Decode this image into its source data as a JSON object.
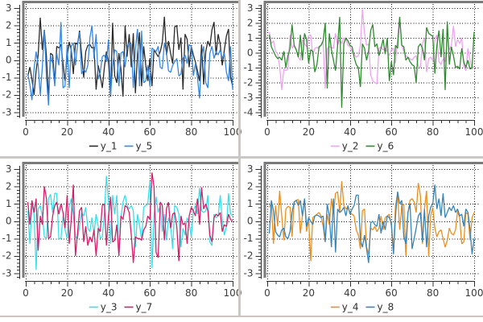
{
  "panel": {
    "background": "#ffffff",
    "separator_color": "#cbc7c5",
    "bottom_edge_color": "#ccc5c2",
    "frame_color": "#7a7a7a",
    "axis_color": "#2f2f2f",
    "grid_color": "#111111",
    "tick_label_color": "#3b3b3b",
    "legend_text_color": "#2e2e2e"
  },
  "chart_data": [
    {
      "type": "line",
      "position": "top-left",
      "xlim": [
        0,
        100
      ],
      "ylim": [
        -3,
        3
      ],
      "xticks": [
        0,
        20,
        40,
        60,
        80,
        100
      ],
      "yticks": [
        3,
        2,
        1,
        0,
        -1,
        -2,
        -3
      ],
      "x_minor_step": 4,
      "y_minor_divisions": 5,
      "grid": true,
      "legend_position": "bottom-center",
      "series": [
        {
          "name": "y_1",
          "color": "#2b2b2b",
          "values": [
            -0.9,
            -0.4,
            -1.1,
            -2.0,
            -0.6,
            0.3,
            2.45,
            0.6,
            1.75,
            0.2,
            -2.2,
            0.4,
            0.3,
            -1.3,
            0.8,
            0.7,
            0.9,
            -0.2,
            -1.2,
            0.2,
            1.05,
            0.6,
            -0.8,
            1.0,
            0.9,
            1.7,
            0.3,
            -1.0,
            0.5,
            0.85,
            0.9,
            0.7,
            0.75,
            -1.7,
            -0.3,
            -0.9,
            -1.6,
            -0.4,
            0.5,
            -0.1,
            -2.1,
            2.15,
            -0.9,
            -1.3,
            0.4,
            -0.5,
            -2.1,
            2.0,
            0.2,
            1.5,
            -0.4,
            1.55,
            -1.9,
            0.3,
            1.6,
            -1.5,
            0.8,
            -0.3,
            -1.2,
            0.1,
            -1.5,
            0.6,
            0.4,
            0.2,
            0.5,
            1.0,
            2.5,
            0.3,
            1.1,
            0.4,
            -0.2,
            1.9,
            2.0,
            0.6,
            1.3,
            -1.7,
            1.5,
            1.2,
            -0.4,
            0.8,
            0.3,
            -0.1,
            -0.6,
            -1.2,
            0.9,
            -1.4,
            0.5,
            1.1,
            0.8,
            1.75,
            2.2,
            0.3,
            1.5,
            0.9,
            -0.3,
            0.6,
            1.4,
            1.8,
            -1.0,
            -1.5
          ]
        },
        {
          "name": "y_5",
          "color": "#3787e0",
          "values": [
            -0.8,
            -1.4,
            -2.3,
            -0.5,
            0.5,
            -0.3,
            -2.0,
            -0.4,
            1.75,
            -1.0,
            -2.6,
            0.3,
            -0.2,
            -1.5,
            0.4,
            -0.3,
            2.2,
            -1.6,
            -1.5,
            0.9,
            -1.6,
            0.8,
            1.0,
            -0.3,
            0.9,
            1.6,
            -0.8,
            -0.5,
            -0.7,
            -0.3,
            1.3,
            2.0,
            0.1,
            1.5,
            -1.1,
            -0.7,
            0.2,
            0.3,
            -0.1,
            1.2,
            -2.0,
            -0.4,
            0.6,
            0.5,
            -1.5,
            0.4,
            0.5,
            -0.4,
            0.8,
            1.0,
            0.9,
            -1.6,
            0.6,
            1.8,
            -1.5,
            1.7,
            -1.3,
            -1.2,
            -0.3,
            -1.5,
            0.7,
            0.6,
            0.5,
            0.8,
            -0.4,
            -0.5,
            1.0,
            0.4,
            -0.6,
            -0.7,
            -0.3,
            -0.1,
            0.1,
            -0.9,
            -0.8,
            0.1,
            0.3,
            -0.2,
            0.9,
            0.8,
            -0.9,
            -0.2,
            -1.0,
            -2.2,
            0.2,
            0.8,
            -1.3,
            -1.6,
            0.4,
            0.8,
            0.1,
            0.5,
            0.3,
            0.6,
            0.1,
            0.4,
            -0.7,
            -1.2,
            0.8,
            -1.7
          ]
        }
      ]
    },
    {
      "type": "line",
      "position": "top-right",
      "xlim": [
        0,
        100
      ],
      "ylim": [
        -4,
        3
      ],
      "xticks": [
        0,
        20,
        40,
        60,
        80,
        100
      ],
      "yticks": [
        3,
        2,
        1,
        0,
        -1,
        -2,
        -3,
        -4
      ],
      "x_minor_step": 4,
      "y_minor_divisions": 5,
      "grid": true,
      "legend_position": "bottom-center",
      "series": [
        {
          "name": "y_2",
          "color": "#efa3ef",
          "values": [
            1.4,
            0.6,
            0.8,
            0.1,
            -0.1,
            -0.9,
            -2.5,
            -1.1,
            -1.2,
            -1.1,
            1.2,
            0.3,
            0.5,
            0.2,
            -0.3,
            -0.5,
            0.9,
            0.6,
            0.4,
            1.15,
            1.2,
            -0.2,
            0.3,
            0.35,
            0.3,
            0.5,
            0.7,
            -2.4,
            0.3,
            0.4,
            0.35,
            0.3,
            1.3,
            0.5,
            0.9,
            0.6,
            1.0,
            0.9,
            0.5,
            0.4,
            0.1,
            -0.1,
            -0.3,
            -0.2,
            0.5,
            2.9,
            1.3,
            0.5,
            0.6,
            -1.5,
            -1.9,
            -2.0,
            -2.1,
            0.3,
            0.4,
            0.2,
            0.3,
            0.1,
            -0.2,
            0.2,
            0.3,
            -0.7,
            1.0,
            2.4,
            0.5,
            0.1,
            -0.2,
            -0.3,
            -0.4,
            -0.5,
            -0.3,
            -0.2,
            -0.9,
            -1.0,
            0.6,
            1.0,
            -1.3,
            -0.4,
            -0.3,
            -0.5,
            0.9,
            1.2,
            -0.6,
            -0.8,
            -0.4,
            -0.6,
            1.1,
            0.2,
            0.5,
            1.8,
            0.4,
            0.9,
            0.6,
            1.0,
            -0.9,
            -1.2,
            0.3,
            -0.5,
            -1.1,
            -0.9
          ]
        },
        {
          "name": "y_6",
          "color": "#2e8b2e",
          "values": [
            1.2,
            0.4,
            0.1,
            -0.2,
            -0.4,
            -0.3,
            -0.5,
            0.1,
            -1.0,
            -0.2,
            0.3,
            1.9,
            0.5,
            0.2,
            -0.3,
            1.2,
            -0.5,
            1.3,
            0.9,
            -0.7,
            0.2,
            0.1,
            -1.3,
            -0.8,
            0.4,
            0.5,
            0.8,
            2.0,
            -2.4,
            1.3,
            0.2,
            -0.5,
            -1.2,
            0.5,
            2.4,
            -3.7,
            0.6,
            1.0,
            0.8,
            0.5,
            0.4,
            -0.3,
            -0.8,
            -1.0,
            -2.3,
            0.6,
            0.3,
            -0.5,
            0.1,
            1.5,
            1.9,
            0.4,
            0.6,
            -0.2,
            0.3,
            0.9,
            -0.1,
            1.0,
            -1.9,
            -0.6,
            -1.5,
            0.5,
            0.3,
            2.4,
            0.5,
            0.4,
            -0.5,
            -0.3,
            -0.6,
            -0.8,
            -0.9,
            -2.0,
            0.4,
            0.6,
            0.3,
            -0.5,
            1.7,
            1.3,
            1.2,
            1.1,
            -1.4,
            0.5,
            1.5,
            -0.3,
            1.6,
            -2.5,
            2.1,
            -0.8,
            0.4,
            -0.2,
            -1.0,
            -0.9,
            -1.1,
            0.3,
            -0.6,
            -1.0,
            -0.5,
            -1.1,
            -1.0,
            1.4
          ]
        }
      ]
    },
    {
      "type": "line",
      "position": "bottom-left",
      "xlim": [
        0,
        100
      ],
      "ylim": [
        -3,
        3
      ],
      "xticks": [
        0,
        20,
        40,
        60,
        80,
        100
      ],
      "yticks": [
        3,
        2,
        1,
        0,
        -1,
        -2,
        -3
      ],
      "x_minor_step": 4,
      "y_minor_divisions": 5,
      "grid": true,
      "legend_position": "bottom-center",
      "series": [
        {
          "name": "y_3",
          "color": "#3adee8",
          "values": [
            0.6,
            -1.3,
            1.0,
            0.4,
            -2.8,
            0.7,
            0.9,
            0.3,
            -0.9,
            -1.0,
            1.3,
            1.55,
            0.5,
            1.6,
            1.6,
            -1.0,
            -1.0,
            0.3,
            -0.5,
            -1.0,
            0.8,
            1.3,
            0.4,
            -0.9,
            -1.0,
            -0.3,
            0.5,
            0.3,
            0.8,
            -0.4,
            -0.6,
            0.2,
            -0.7,
            0.4,
            -0.3,
            -1.0,
            -0.9,
            0.5,
            2.6,
            1.1,
            -1.3,
            1.5,
            0.4,
            1.5,
            -2.0,
            0.2,
            1.1,
            1.5,
            0.9,
            0.7,
            0.9,
            0.6,
            -1.5,
            0.4,
            -0.2,
            -1.1,
            0.8,
            0.9,
            1.0,
            2.3,
            -2.7,
            0.3,
            1.4,
            0.5,
            0.9,
            -0.6,
            0.4,
            -1.1,
            0.2,
            -0.2,
            -1.6,
            0.9,
            0.8,
            0.4,
            -1.5,
            -0.4,
            -0.8,
            0.2,
            -0.1,
            -0.9,
            0.6,
            0.9,
            0.4,
            1.9,
            0.6,
            0.5,
            0.6,
            1.5,
            -1.2,
            -1.4,
            0.4,
            0.2,
            0.3,
            1.5,
            0.1,
            -0.8,
            -0.3,
            1.6,
            0.4,
            0.3
          ]
        },
        {
          "name": "y_7",
          "color": "#d41e68",
          "values": [
            1.1,
            -0.2,
            1.2,
            0.5,
            1.3,
            -1.7,
            0.3,
            -0.2,
            2.0,
            1.3,
            -1.0,
            -0.9,
            0.3,
            0.9,
            1.1,
            0.4,
            1.0,
            0.5,
            -0.4,
            1.5,
            -1.3,
            0.1,
            2.1,
            -2.0,
            -0.7,
            0.6,
            0.8,
            -1.2,
            -0.3,
            -1.4,
            -0.9,
            -1.2,
            -0.5,
            -2.0,
            -0.4,
            -0.6,
            0.9,
            1.0,
            -1.4,
            0.3,
            1.4,
            -1.2,
            -1.1,
            -0.2,
            -2.0,
            0.3,
            0.1,
            0.9,
            0.8,
            0.5,
            -0.8,
            -2.4,
            -0.9,
            -1.0,
            -1.0,
            -1.1,
            -0.5,
            -0.3,
            0.3,
            0.1,
            2.8,
            2.0,
            -1.8,
            -2.1,
            1.1,
            0.9,
            -1.1,
            0.7,
            1.1,
            -0.4,
            0.4,
            0.5,
            -0.3,
            -2.3,
            0.3,
            -0.2,
            -0.1,
            -1.3,
            0.3,
            0.8,
            0.6,
            0.3,
            1.3,
            -0.2,
            1.95,
            0.7,
            1.0,
            0.6,
            -0.8,
            -1.2,
            0.2,
            0.4,
            0.3,
            0.5,
            -0.6,
            -0.2,
            -0.3,
            0.4,
            0.1,
            0.0
          ]
        }
      ]
    },
    {
      "type": "line",
      "position": "bottom-right",
      "xlim": [
        0,
        100
      ],
      "ylim": [
        -3,
        3
      ],
      "xticks": [
        0,
        20,
        40,
        60,
        80,
        100
      ],
      "yticks": [
        3,
        2,
        1,
        0,
        -1,
        -2,
        -3
      ],
      "x_minor_step": 4,
      "y_minor_divisions": 5,
      "grid": true,
      "legend_position": "bottom-center",
      "series": [
        {
          "name": "y_4",
          "color": "#ea8f1f",
          "values": [
            0.8,
            1.1,
            -1.3,
            0.9,
            -0.3,
            1.75,
            0.3,
            -1.1,
            0.7,
            0.85,
            0.8,
            -0.9,
            1.1,
            1.2,
            1.25,
            -0.7,
            0.3,
            1.3,
            -0.6,
            0.1,
            -2.3,
            0.2,
            0.3,
            0.4,
            0.5,
            0.3,
            -0.3,
            -1.2,
            0.4,
            -0.2,
            1.3,
            0.4,
            1.6,
            1.7,
            0.5,
            2.3,
            0.9,
            0.7,
            0.8,
            0.5,
            0.4,
            0.3,
            -0.5,
            -0.8,
            -1.6,
            0.6,
            0.7,
            -1.5,
            -1.9,
            -0.4,
            -0.5,
            -0.3,
            -0.6,
            -0.4,
            0.3,
            -0.5,
            0.2,
            0.3,
            0.4,
            -0.3,
            -1.8,
            0.9,
            1.6,
            -0.5,
            0.9,
            1.0,
            -2.0,
            0.5,
            1.2,
            1.3,
            1.1,
            0.5,
            2.2,
            1.5,
            -1.3,
            0.7,
            1.75,
            -2.0,
            0.3,
            0.8,
            -0.4,
            -0.9,
            -0.6,
            -0.5,
            -1.0,
            -1.5,
            -1.1,
            -0.4,
            -0.7,
            -0.8,
            -0.5,
            0.6,
            0.2,
            -1.3,
            -1.2,
            0.5,
            0.4,
            -1.1,
            0.2,
            0.5
          ]
        },
        {
          "name": "y_8",
          "color": "#3685ba",
          "values": [
            -0.7,
            1.2,
            0.6,
            -0.6,
            -0.8,
            -0.9,
            -0.5,
            -0.4,
            -0.9,
            -1.0,
            -0.6,
            0.5,
            1.1,
            1.2,
            0.9,
            1.2,
            0.3,
            1.3,
            -0.3,
            0.2,
            0.0,
            -0.2,
            0.3,
            0.35,
            0.3,
            0.2,
            0.3,
            -1.2,
            1.0,
            0.3,
            -1.5,
            1.3,
            -1.8,
            0.7,
            0.5,
            0.6,
            0.8,
            0.3,
            0.9,
            0.4,
            0.7,
            0.9,
            1.5,
            1.5,
            -1.1,
            -1.5,
            -0.8,
            -1.6,
            -2.4,
            -0.1,
            0.0,
            -0.2,
            -0.3,
            0.4,
            -0.7,
            0.0,
            -0.5,
            0.3,
            0.2,
            -0.1,
            -1.9,
            0.3,
            1.7,
            1.0,
            1.2,
            -0.9,
            -1.3,
            0.5,
            1.0,
            -1.6,
            -1.0,
            -0.4,
            0.3,
            0.5,
            -1.2,
            0.7,
            -1.5,
            0.3,
            0.8,
            1.0,
            2.1,
            0.7,
            1.3,
            0.3,
            1.6,
            0.2,
            0.5,
            0.8,
            0.6,
            0.9,
            0.5,
            0.7,
            0.3,
            0.4,
            -0.3,
            0.7,
            0.5,
            -0.5,
            -1.9,
            -1.0
          ]
        }
      ]
    }
  ]
}
